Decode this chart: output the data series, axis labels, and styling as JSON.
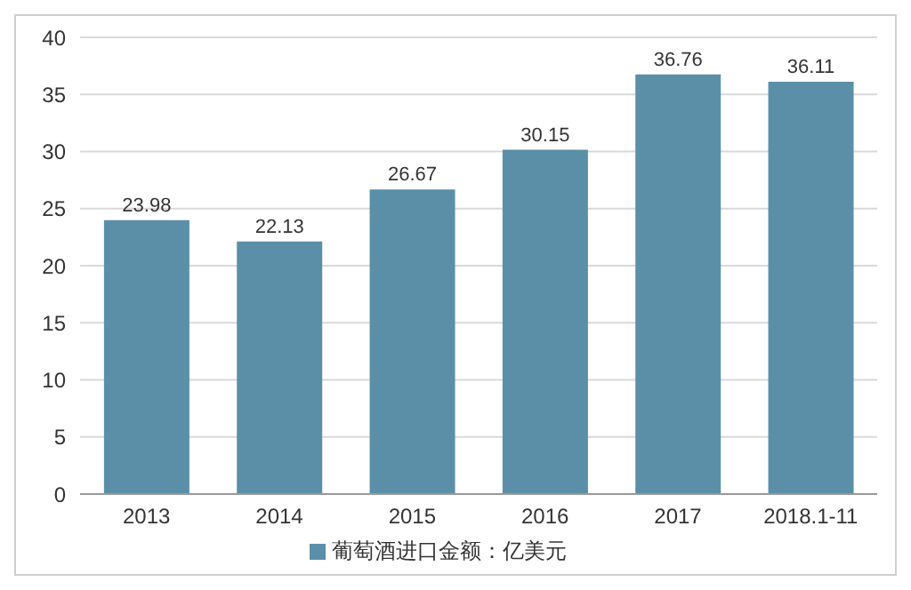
{
  "chart_data": {
    "type": "bar",
    "categories": [
      "2013",
      "2014",
      "2015",
      "2016",
      "2017",
      "2018.1-11"
    ],
    "series": [
      {
        "name": "葡萄酒进口金额：亿美元",
        "color": "#5b8fa8",
        "values": [
          23.98,
          22.13,
          26.67,
          30.15,
          36.76,
          36.11
        ]
      }
    ],
    "ylim": [
      0,
      40
    ],
    "yticks": [
      0,
      5,
      10,
      15,
      20,
      25,
      30,
      35,
      40
    ],
    "grid": "y",
    "legend": "bottom",
    "data_labels": true
  }
}
